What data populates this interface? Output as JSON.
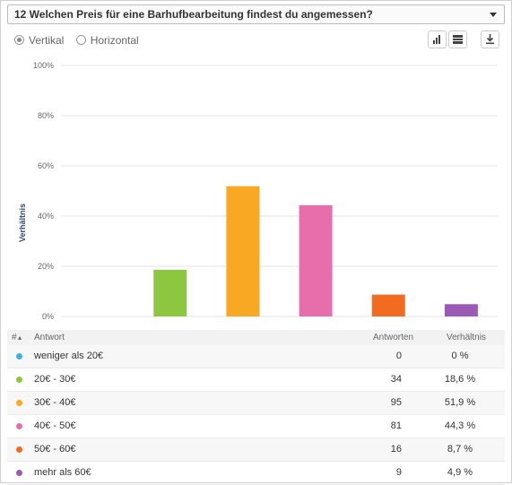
{
  "header": {
    "title": "12 Welchen Preis für eine Barhufbearbeitung findest du angemessen?"
  },
  "controls": {
    "vertical_label": "Vertikal",
    "horizontal_label": "Horizontal",
    "selected": "vertical"
  },
  "chart_data": {
    "type": "bar",
    "categories": [
      "weniger als 20€",
      "20€ - 30€",
      "30€ - 40€",
      "40€ - 50€",
      "50€ - 60€",
      "mehr als 60€"
    ],
    "values": [
      0,
      18.6,
      51.9,
      44.3,
      8.7,
      4.9
    ],
    "colors": [
      "#3ab0e2",
      "#8dc63f",
      "#f9a824",
      "#e86eab",
      "#f26b21",
      "#9b59b6"
    ],
    "ylabel": "Verhältnis",
    "ylim": [
      0,
      100
    ],
    "yticks": [
      "0%",
      "20%",
      "40%",
      "60%",
      "80%",
      "100%"
    ],
    "grid": true
  },
  "table": {
    "headers": {
      "num": "#",
      "answer": "Antwort",
      "count": "Antworten",
      "ratio": "Verhältnis"
    },
    "rows": [
      {
        "answer": "weniger als 20€",
        "count": "0",
        "ratio": "0 %",
        "color": "#3ab0e2"
      },
      {
        "answer": "20€ - 30€",
        "count": "34",
        "ratio": "18,6 %",
        "color": "#8dc63f"
      },
      {
        "answer": "30€ - 40€",
        "count": "95",
        "ratio": "51,9 %",
        "color": "#f9a824"
      },
      {
        "answer": "40€ - 50€",
        "count": "81",
        "ratio": "44,3 %",
        "color": "#e86eab"
      },
      {
        "answer": "50€ - 60€",
        "count": "16",
        "ratio": "8,7 %",
        "color": "#f26b21"
      },
      {
        "answer": "mehr als 60€",
        "count": "9",
        "ratio": "4,9 %",
        "color": "#9b59b6"
      }
    ]
  }
}
